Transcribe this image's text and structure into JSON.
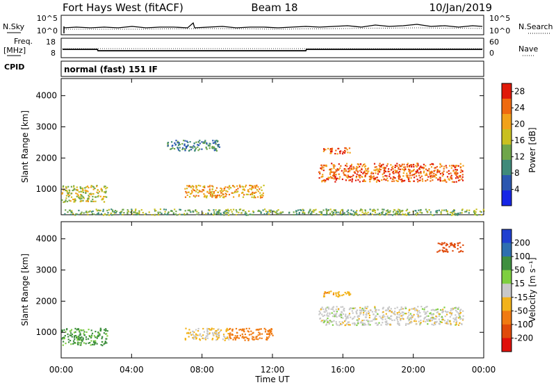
{
  "header": {
    "station": "Fort Hays West (fitACF)",
    "beam": "Beam 18",
    "date": "10/Jan/2019"
  },
  "top_panels": {
    "nsky_label": "N.Sky",
    "nsky_ticks": [
      "10^5",
      "10^0"
    ],
    "nsearch_label": "N.Search",
    "nsearch_ticks": [
      "10^5",
      "10^0"
    ],
    "freq_label_1": "Freq.",
    "freq_label_2": "[MHz]",
    "freq_ticks": [
      "18",
      "8"
    ],
    "nave_label": "Nave",
    "nave_ticks": [
      "60",
      "0"
    ],
    "cpid_label": "CPID",
    "cpid_text": "normal (fast) 151 IF"
  },
  "chart_data": [
    {
      "type": "heatmap",
      "name": "power",
      "xlabel": "Time UT",
      "x_ticks": [
        "00:00",
        "04:00",
        "08:00",
        "12:00",
        "16:00",
        "20:00",
        "00:00"
      ],
      "x_range_hours": [
        0,
        24
      ],
      "ylabel": "Slant Range [km]",
      "y_ticks": [
        1000,
        2000,
        3000,
        4000
      ],
      "y_range_km": [
        180,
        4550
      ],
      "colorbar_label": "Power [dB]",
      "colorbar_ticks": [
        4,
        8,
        12,
        16,
        20,
        24,
        28
      ],
      "colorbar_range": [
        0,
        30
      ],
      "colors": [
        "#1626e6",
        "#2b57b0",
        "#3f8a7a",
        "#6fa64a",
        "#c9c020",
        "#f2a21a",
        "#ef6a10",
        "#e01a0a"
      ],
      "features": [
        {
          "t0": 0.0,
          "t1": 2.6,
          "r0": 600,
          "r1": 1150,
          "level": 4
        },
        {
          "t0": 6.0,
          "t1": 9.0,
          "r0": 2250,
          "r1": 2600,
          "level": 2
        },
        {
          "t0": 7.0,
          "t1": 11.5,
          "r0": 750,
          "r1": 1150,
          "level": 5
        },
        {
          "t0": 14.6,
          "t1": 22.8,
          "r0": 1250,
          "r1": 1850,
          "level": 6
        },
        {
          "t0": 14.8,
          "t1": 16.4,
          "r0": 2150,
          "r1": 2350,
          "level": 6
        },
        {
          "t0": 0.0,
          "t1": 24.0,
          "r0": 190,
          "r1": 380,
          "level": 3
        }
      ]
    },
    {
      "type": "heatmap",
      "name": "velocity",
      "xlabel": "Time UT",
      "x_ticks": [
        "00:00",
        "04:00",
        "08:00",
        "12:00",
        "16:00",
        "20:00",
        "00:00"
      ],
      "x_range_hours": [
        0,
        24
      ],
      "ylabel": "Slant Range [km]",
      "y_ticks": [
        1000,
        2000,
        3000,
        4000
      ],
      "y_range_km": [
        180,
        4550
      ],
      "colorbar_label": "Velocity [m s⁻¹]",
      "colorbar_ticks": [
        200,
        100,
        50,
        15,
        -15,
        -50,
        -100,
        -200
      ],
      "colors": [
        "#1f3fd0",
        "#2e6fb0",
        "#3f8f3f",
        "#7ecf3f",
        "#c8c8c8",
        "#f2b21a",
        "#f07a12",
        "#e04a0a",
        "#e0100a"
      ],
      "features": [
        {
          "t0": 0.0,
          "t1": 2.6,
          "r0": 600,
          "r1": 1150,
          "velocity": 60
        },
        {
          "t0": 7.0,
          "t1": 9.5,
          "r0": 750,
          "r1": 1150,
          "velocity": -15
        },
        {
          "t0": 9.5,
          "t1": 12.0,
          "r0": 750,
          "r1": 1150,
          "velocity": -70
        },
        {
          "t0": 14.6,
          "t1": 22.8,
          "r0": 1250,
          "r1": 1850,
          "velocity": 0
        },
        {
          "t0": 14.8,
          "t1": 16.4,
          "r0": 2150,
          "r1": 2350,
          "velocity": -40
        },
        {
          "t0": 21.3,
          "t1": 22.8,
          "r0": 3600,
          "r1": 3900,
          "velocity": -150
        }
      ]
    }
  ]
}
